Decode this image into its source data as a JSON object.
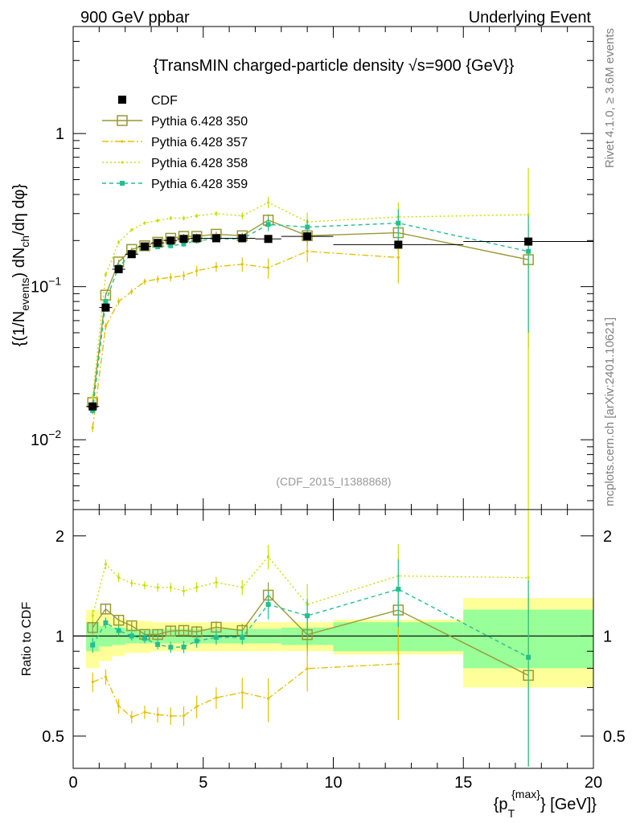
{
  "header": {
    "left": "900 GeV ppbar",
    "right": "Underlying Event",
    "side_top": "Rivet 4.1.0, ≥ 3.6M events",
    "side_bottom": "mcplots.cern.ch [arXiv:2401.10621]"
  },
  "chart_data": {
    "type": "line",
    "title": "{TransMIN charged-particle density √s=900 {GeV}}",
    "watermark": "(CDF_2015_I1388868)",
    "ylabel": "{(1/N_events) dN_ch/dη dφ}",
    "ylabel_parts": {
      "a": "{(1/N",
      "b": "events",
      "c": ") dN",
      "d": "ch",
      "e": "/dη dφ}"
    },
    "xlabel": "{p_T^{max}} [GeV]",
    "xlabel_parts": {
      "a": "{p",
      "sub": "T",
      "sup": "{max}",
      "b": "} [GeV]}"
    },
    "ratio_ylabel": "Ratio to CDF",
    "xlim": [
      0,
      20
    ],
    "ylim": [
      0.0035,
      5
    ],
    "ratio_ylim": [
      0.4,
      2.4
    ],
    "x_ticks": [
      "0",
      "5",
      "10",
      "15",
      "20"
    ],
    "main_ticks": [
      {
        "value": 1,
        "base": "1",
        "exp": ""
      },
      {
        "value": 0.1,
        "base": "10",
        "exp": "−1"
      },
      {
        "value": 0.01,
        "base": "10",
        "exp": "−2"
      }
    ],
    "ratio_ticks": [
      "2",
      "1",
      "0.5"
    ],
    "x_bins": [
      [
        0.5,
        1
      ],
      [
        1,
        1.5
      ],
      [
        1.5,
        2
      ],
      [
        2,
        2.5
      ],
      [
        2.5,
        3
      ],
      [
        3,
        3.5
      ],
      [
        3.5,
        4
      ],
      [
        4,
        4.5
      ],
      [
        4.5,
        5
      ],
      [
        5,
        6
      ],
      [
        6,
        7
      ],
      [
        7,
        8
      ],
      [
        8,
        10
      ],
      [
        10,
        15
      ],
      [
        15,
        20
      ]
    ],
    "x": [
      0.75,
      1.25,
      1.75,
      2.25,
      2.75,
      3.25,
      3.75,
      4.25,
      4.75,
      5.5,
      6.5,
      7.5,
      9.0,
      12.5,
      17.5
    ],
    "legend": [
      {
        "label": "CDF"
      },
      {
        "label": "Pythia 6.428 350"
      },
      {
        "label": "Pythia 6.428 357"
      },
      {
        "label": "Pythia 6.428 358"
      },
      {
        "label": "Pythia 6.428 359"
      }
    ],
    "data": {
      "name": "CDF",
      "values": [
        0.0165,
        0.073,
        0.13,
        0.163,
        0.183,
        0.193,
        0.2,
        0.205,
        0.207,
        0.207,
        0.207,
        0.205,
        0.213,
        0.188,
        0.197
      ],
      "band_stat": [
        0.1,
        0.07,
        0.06,
        0.05,
        0.05,
        0.05,
        0.05,
        0.05,
        0.05,
        0.05,
        0.05,
        0.05,
        0.06,
        0.1,
        0.2
      ],
      "band_total": [
        0.2,
        0.16,
        0.13,
        0.11,
        0.11,
        0.1,
        0.1,
        0.1,
        0.1,
        0.1,
        0.1,
        0.1,
        0.1,
        0.12,
        0.3
      ]
    },
    "series": [
      {
        "name": "Pythia 6.428 350",
        "color": "#999933",
        "dash": "",
        "marker": "open-square",
        "values": [
          0.0175,
          0.088,
          0.145,
          0.175,
          0.185,
          0.195,
          0.207,
          0.213,
          0.213,
          0.22,
          0.215,
          0.272,
          0.215,
          0.225,
          0.15
        ],
        "errors": [
          0.0008,
          0.003,
          0.005,
          0.005,
          0.005,
          0.006,
          0.007,
          0.008,
          0.009,
          0.009,
          0.01,
          0.025,
          0.03,
          0.06,
          0.11
        ]
      },
      {
        "name": "Pythia 6.428 357",
        "color": "#e5c100",
        "dash": "8,3,2,3",
        "marker": "small-dot",
        "values": [
          0.012,
          0.055,
          0.08,
          0.093,
          0.108,
          0.112,
          0.115,
          0.118,
          0.127,
          0.135,
          0.14,
          0.133,
          0.17,
          0.155,
          0.0
        ],
        "errors": [
          0.0008,
          0.003,
          0.004,
          0.004,
          0.005,
          0.006,
          0.007,
          0.008,
          0.01,
          0.01,
          0.015,
          0.02,
          0.025,
          0.05,
          0.0
        ]
      },
      {
        "name": "Pythia 6.428 358",
        "color": "#c8e000",
        "dash": "2,3",
        "marker": "small-dot",
        "values": [
          0.019,
          0.12,
          0.195,
          0.235,
          0.26,
          0.27,
          0.28,
          0.28,
          0.29,
          0.3,
          0.29,
          0.355,
          0.265,
          0.285,
          0.295
        ],
        "errors": [
          0.0008,
          0.004,
          0.006,
          0.006,
          0.007,
          0.008,
          0.009,
          0.01,
          0.01,
          0.012,
          0.015,
          0.03,
          0.04,
          0.07,
          0.3
        ]
      },
      {
        "name": "Pythia 6.428 359",
        "color": "#20c090",
        "dash": "5,4",
        "marker": "filled-square",
        "values": [
          0.0155,
          0.08,
          0.135,
          0.163,
          0.18,
          0.182,
          0.185,
          0.19,
          0.2,
          0.205,
          0.205,
          0.255,
          0.245,
          0.26,
          0.17
        ],
        "errors": [
          0.0008,
          0.003,
          0.005,
          0.005,
          0.006,
          0.006,
          0.007,
          0.008,
          0.009,
          0.01,
          0.01,
          0.025,
          0.03,
          0.06,
          0.12
        ]
      }
    ]
  }
}
